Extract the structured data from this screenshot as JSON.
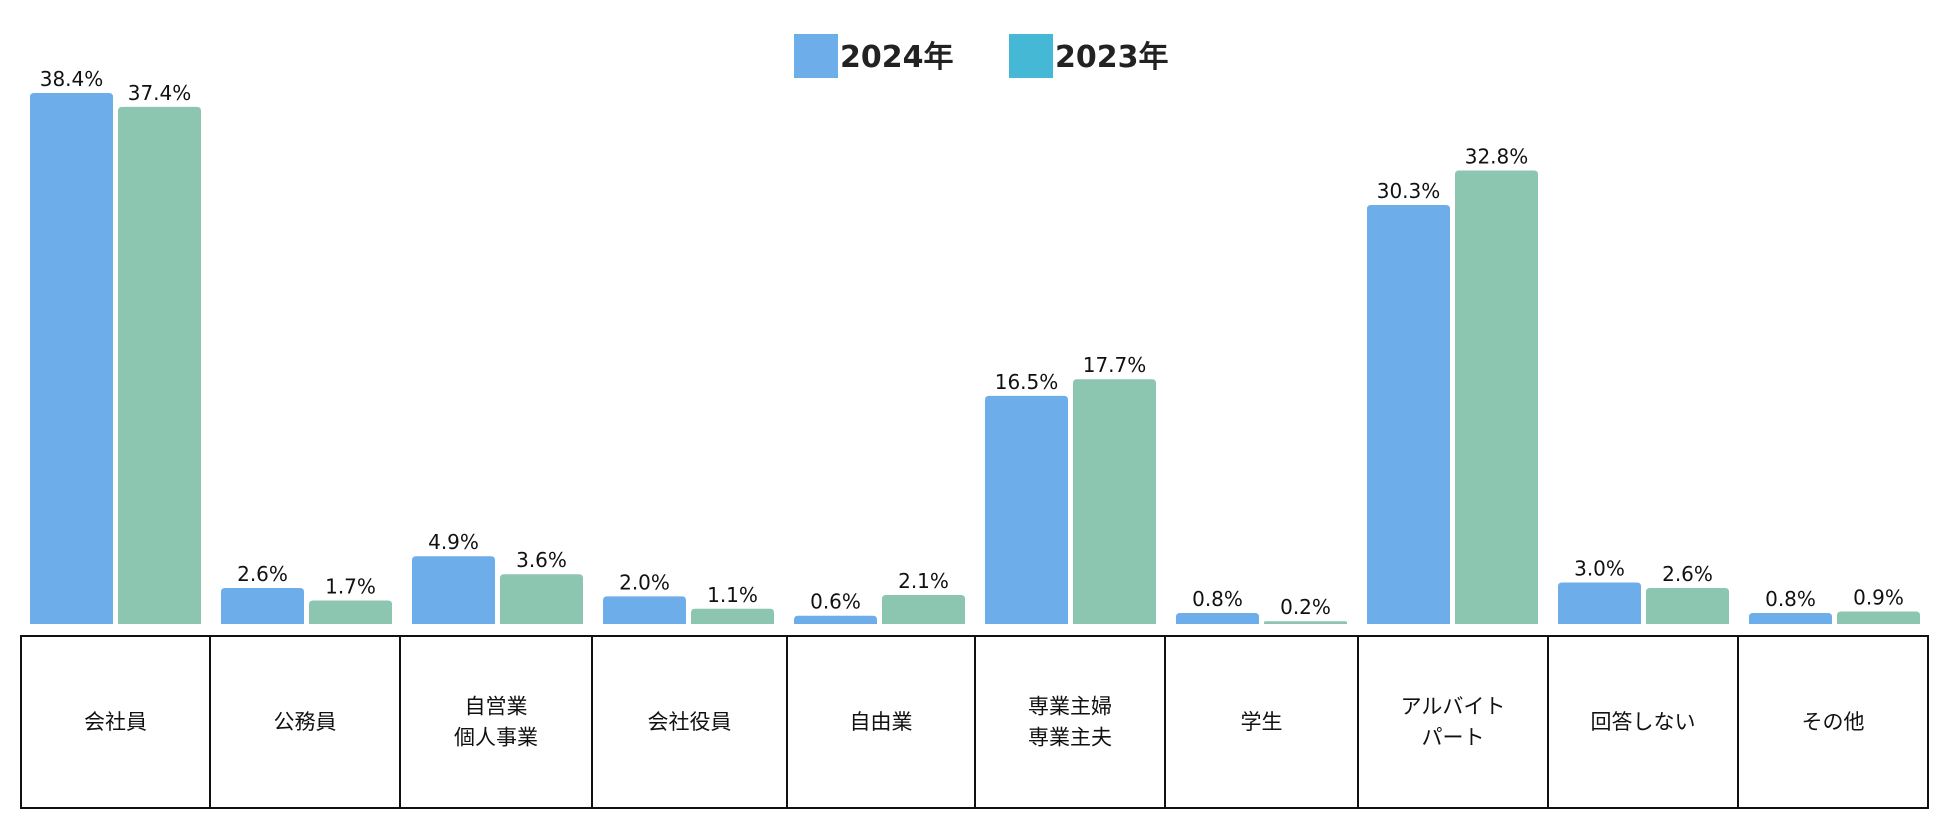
{
  "chart_data": {
    "type": "bar",
    "categories": [
      "会社員",
      "公務員",
      "自営業\n個人事業",
      "会社役員",
      "自由業",
      "専業主婦\n専業主夫",
      "学生",
      "アルバイト\nパート",
      "回答しない",
      "その他"
    ],
    "series": [
      {
        "name": "2024年",
        "color": "#6daeea",
        "values": [
          38.4,
          2.6,
          4.9,
          2.0,
          0.6,
          16.5,
          0.8,
          30.3,
          3.0,
          0.8
        ]
      },
      {
        "name": "2023年",
        "color": "#8cc6b0",
        "legend_color": "#45b8d6",
        "values": [
          37.4,
          1.7,
          3.6,
          1.1,
          2.1,
          17.7,
          0.2,
          32.8,
          2.6,
          0.9
        ]
      }
    ],
    "value_labels": [
      [
        "38.4%",
        "2.6%",
        "4.9%",
        "2.0%",
        "0.6%",
        "16.5%",
        "0.8%",
        "30.3%",
        "3.0%",
        "0.8%"
      ],
      [
        "37.4%",
        "1.7%",
        "3.6%",
        "1.1%",
        "2.1%",
        "17.7%",
        "0.2%",
        "32.8%",
        "2.6%",
        "0.9%"
      ]
    ],
    "ylim": [
      0,
      40
    ],
    "legend_position": "top-center"
  }
}
